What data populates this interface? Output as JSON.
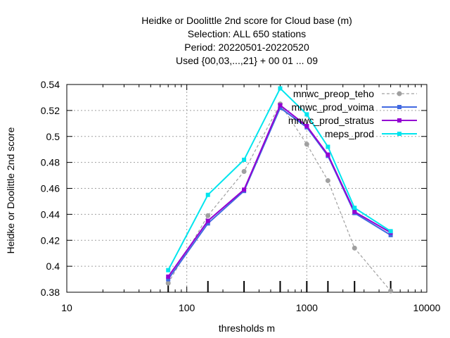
{
  "chart_data": {
    "type": "line",
    "title_lines": [
      "Heidke or Doolittle 2nd score  for Cloud base (m)",
      "Selection: ALL    650 stations",
      "Period: 20220501-20220520",
      "Used {00,03,...,21} + 00 01 ... 09"
    ],
    "xlabel": "thresholds m",
    "ylabel": "Heidke or Doolittle 2nd score",
    "xscale": "log",
    "xlim": [
      10,
      10000
    ],
    "ylim": [
      0.38,
      0.54
    ],
    "xticks": [
      10,
      100,
      1000,
      10000
    ],
    "xtick_labels": [
      "10",
      "100",
      "1000",
      "10000"
    ],
    "yticks": [
      0.38,
      0.4,
      0.42,
      0.44,
      0.46,
      0.48,
      0.5,
      0.52,
      0.54
    ],
    "ytick_labels": [
      "0.38",
      "0.4",
      "0.42",
      "0.44",
      "0.46",
      "0.48",
      "0.5",
      "0.52",
      "0.54"
    ],
    "grid": true,
    "legend_position": "top-right",
    "x": [
      70,
      150,
      300,
      600,
      1000,
      1500,
      2500,
      5000
    ],
    "obs_markers_x": [
      70,
      150,
      300,
      600,
      1000,
      1500,
      2500,
      5000
    ],
    "series": [
      {
        "name": "mnwc_preop_teho",
        "color": "#a0a0a0",
        "dashed": true,
        "marker": "circle",
        "values": [
          0.387,
          0.439,
          0.473,
          0.525,
          0.494,
          0.466,
          0.414,
          0.381
        ]
      },
      {
        "name": "mnwc_prod_voima",
        "color": "#4169e1",
        "dashed": false,
        "marker": "square",
        "values": [
          0.39,
          0.433,
          0.458,
          0.522,
          0.507,
          0.485,
          0.441,
          0.424
        ]
      },
      {
        "name": "mnwc_prod_stratus",
        "color": "#9400d3",
        "dashed": false,
        "marker": "square",
        "values": [
          0.392,
          0.435,
          0.459,
          0.524,
          0.508,
          0.486,
          0.442,
          0.426
        ]
      },
      {
        "name": "meps_prod",
        "color": "#00e5ee",
        "dashed": false,
        "marker": "square",
        "values": [
          0.397,
          0.455,
          0.482,
          0.537,
          0.517,
          0.492,
          0.445,
          0.427
        ]
      }
    ]
  }
}
